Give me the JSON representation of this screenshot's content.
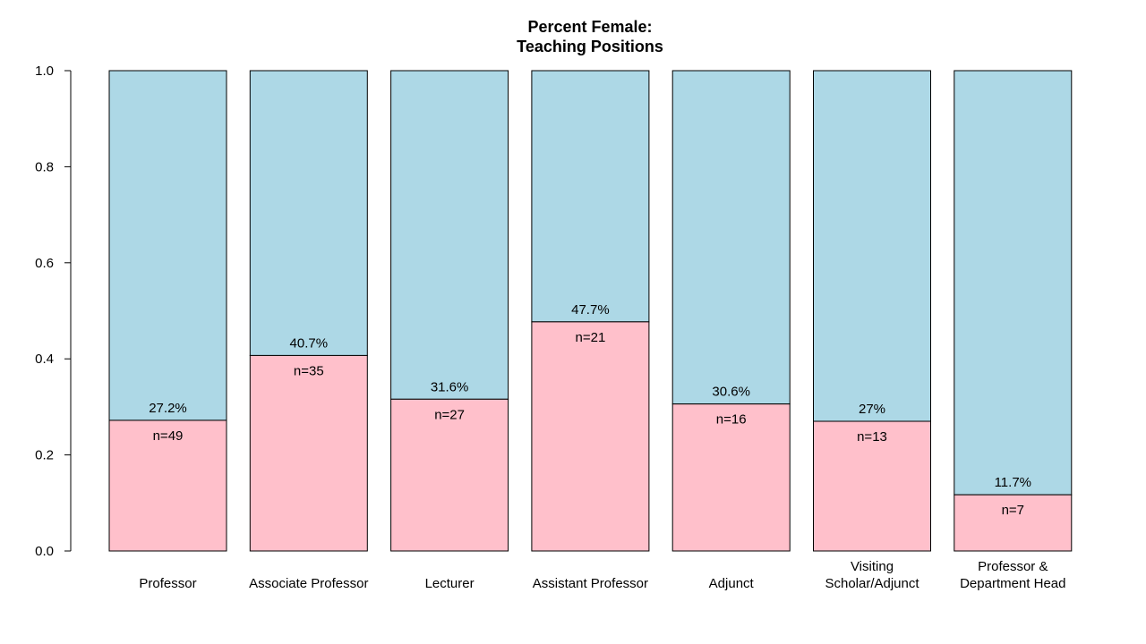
{
  "chart_data": {
    "type": "bar",
    "stacked": true,
    "title_lines": [
      "Percent Female:",
      "Teaching Positions"
    ],
    "xlabel": "",
    "ylabel": "",
    "ylim": [
      0,
      1
    ],
    "yticks": [
      "0.0",
      "0.2",
      "0.4",
      "0.6",
      "0.8",
      "1.0"
    ],
    "ytick_values": [
      0,
      0.2,
      0.4,
      0.6,
      0.8,
      1.0
    ],
    "categories": [
      [
        "Professor"
      ],
      [
        "Associate Professor"
      ],
      [
        "Lecturer"
      ],
      [
        "Assistant Professor"
      ],
      [
        "Adjunct"
      ],
      [
        "Visiting",
        "Scholar/Adjunct"
      ],
      [
        "Professor &",
        "Department Head"
      ]
    ],
    "female_fraction": [
      0.272,
      0.407,
      0.316,
      0.477,
      0.306,
      0.27,
      0.117
    ],
    "percent_labels": [
      "27.2%",
      "40.7%",
      "31.6%",
      "47.7%",
      "30.6%",
      "27%",
      "11.7%"
    ],
    "n_labels": [
      "n=49",
      "n=35",
      "n=27",
      "n=21",
      "n=16",
      "n=13",
      "n=7"
    ],
    "colors": {
      "female": "#FFC0CB",
      "other": "#ADD8E6",
      "outline": "#000000"
    },
    "grid": false,
    "legend": "none"
  }
}
